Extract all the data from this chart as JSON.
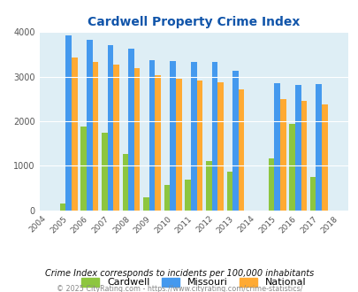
{
  "title": "Cardwell Property Crime Index",
  "all_years": [
    2004,
    2005,
    2006,
    2007,
    2008,
    2009,
    2010,
    2011,
    2012,
    2013,
    2014,
    2015,
    2016,
    2017,
    2018
  ],
  "data_years": [
    2005,
    2006,
    2007,
    2008,
    2009,
    2010,
    2011,
    2012,
    2013,
    2015,
    2016,
    2017
  ],
  "cardwell": [
    150,
    1870,
    1750,
    1260,
    300,
    560,
    680,
    1100,
    860,
    1160,
    1930,
    740
  ],
  "missouri": [
    3930,
    3820,
    3700,
    3620,
    3380,
    3350,
    3330,
    3330,
    3130,
    2860,
    2810,
    2830
  ],
  "national": [
    3430,
    3340,
    3270,
    3200,
    3030,
    2950,
    2920,
    2870,
    2720,
    2500,
    2450,
    2380
  ],
  "cardwell_color": "#8dc63f",
  "missouri_color": "#4499ee",
  "national_color": "#ffaa33",
  "bg_color": "#deeef5",
  "title_color": "#1155aa",
  "ylim": [
    0,
    4000
  ],
  "yticks": [
    0,
    1000,
    2000,
    3000,
    4000
  ],
  "bar_width": 0.28,
  "subtitle": "Crime Index corresponds to incidents per 100,000 inhabitants",
  "footer": "© 2025 CityRating.com - https://www.cityrating.com/crime-statistics/",
  "subtitle_color": "#111111",
  "footer_color": "#888888"
}
